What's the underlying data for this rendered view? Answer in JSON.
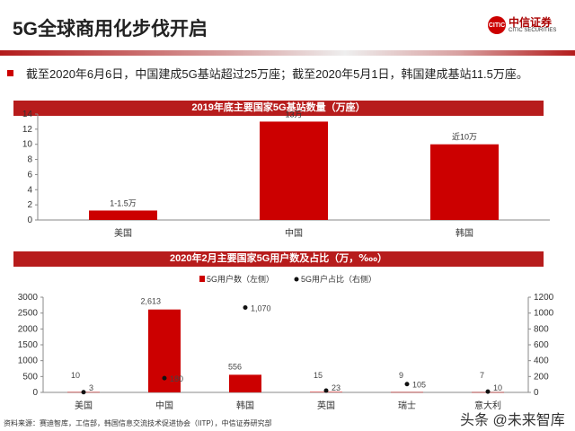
{
  "header": {
    "title": "5G全球商用化步伐开启",
    "logo_cn": "中信证券",
    "logo_en": "CITIC SECURITIES"
  },
  "bullet": "截至2020年6月6日，中国建成5G基站超过25万座；截至2020年5月1日，韩国建成基站11.5万座。",
  "source": "资料来源：赛迪智库，工信部，韩国信息交流技术促进协会（IITP），中信证券研究部",
  "watermark": "头条 @未来智库",
  "colors": {
    "bar": "#cc0000",
    "accent": "#b71c1c"
  },
  "chart_data": [
    {
      "type": "bar",
      "title": "2019年底主要国家5G基站数量（万座）",
      "categories": [
        "美国",
        "中国",
        "韩国"
      ],
      "values": [
        1.25,
        13,
        10
      ],
      "data_labels": [
        "1-1.5万",
        "13万",
        "近10万"
      ],
      "ylim": [
        0,
        14
      ],
      "yticks": [
        0,
        2,
        4,
        6,
        8,
        10,
        12,
        14
      ]
    },
    {
      "type": "bar+scatter",
      "title": "2020年2月主要国家5G用户数及占比（万，‱）",
      "categories": [
        "美国",
        "中国",
        "韩国",
        "英国",
        "瑞士",
        "意大利"
      ],
      "series": [
        {
          "name": "5G用户数（左侧）",
          "type": "bar",
          "axis": "left",
          "values": [
            10,
            2613,
            556,
            15,
            9,
            7
          ],
          "labels": [
            "10",
            "2,613",
            "556",
            "15",
            "9",
            "7"
          ]
        },
        {
          "name": "5G用户占比（右侧）",
          "type": "scatter",
          "axis": "right",
          "values": [
            3,
            180,
            1070,
            23,
            105,
            10
          ],
          "labels": [
            "3",
            "180",
            "1,070",
            "23",
            "105",
            "10"
          ]
        }
      ],
      "ylim_left": [
        0,
        3000
      ],
      "yticks_left": [
        0,
        500,
        1000,
        1500,
        2000,
        2500,
        3000
      ],
      "ylim_right": [
        0,
        1200
      ],
      "yticks_right": [
        0,
        200,
        400,
        600,
        800,
        1000,
        1200
      ]
    }
  ]
}
